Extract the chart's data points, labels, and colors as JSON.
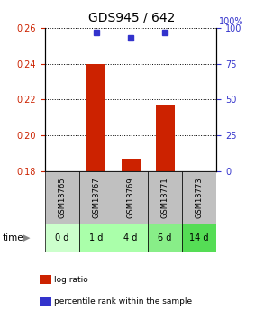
{
  "title": "GDS945 / 642",
  "categories": [
    "GSM13765",
    "GSM13767",
    "GSM13769",
    "GSM13771",
    "GSM13773"
  ],
  "time_labels": [
    "0 d",
    "1 d",
    "4 d",
    "6 d",
    "14 d"
  ],
  "log_ratio_values": [
    0.18,
    0.24,
    0.187,
    0.217,
    0.18
  ],
  "percentile_values": [
    null,
    97,
    93,
    97,
    null
  ],
  "ylim_left": [
    0.18,
    0.26
  ],
  "ylim_right": [
    0,
    100
  ],
  "yticks_left": [
    0.18,
    0.2,
    0.22,
    0.24,
    0.26
  ],
  "yticks_right": [
    0,
    25,
    50,
    75,
    100
  ],
  "bar_color": "#cc2200",
  "dot_color": "#3333cc",
  "background_color": "#ffffff",
  "sample_bg_color": "#c0c0c0",
  "time_bg_colors": [
    "#ccffcc",
    "#aaffaa",
    "#aaffaa",
    "#88ee88",
    "#55dd55"
  ],
  "bar_baseline": 0.18,
  "bar_width": 0.55,
  "legend_bar_label": "log ratio",
  "legend_dot_label": "percentile rank within the sample",
  "left_tick_color": "#cc2200",
  "right_tick_color": "#3333cc",
  "title_fontsize": 10,
  "tick_fontsize": 7,
  "sample_fontsize": 6,
  "time_fontsize": 7
}
